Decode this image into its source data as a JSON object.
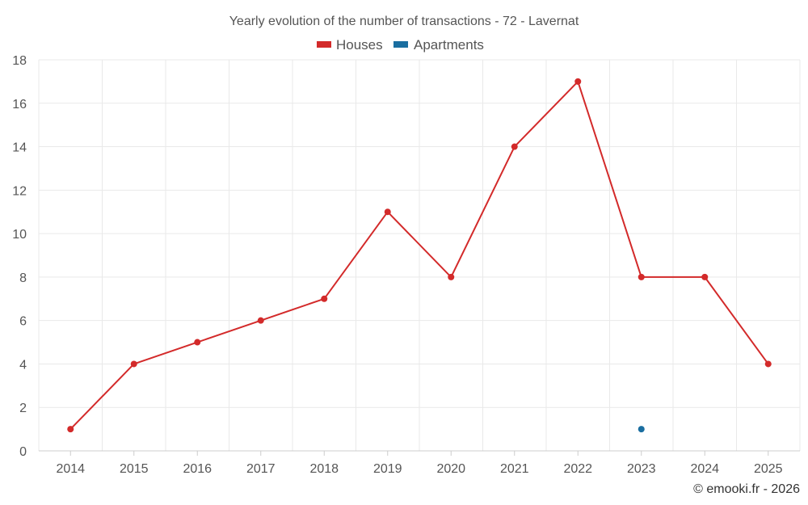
{
  "chart_data": {
    "type": "line",
    "title": "Yearly evolution of the number of transactions - 72 - Lavernat",
    "categories": [
      "2014",
      "2015",
      "2016",
      "2017",
      "2018",
      "2019",
      "2020",
      "2021",
      "2022",
      "2023",
      "2024",
      "2025"
    ],
    "ylim": [
      0,
      18
    ],
    "yticks": [
      0,
      2,
      4,
      6,
      8,
      10,
      12,
      14,
      16,
      18
    ],
    "grid": true,
    "legend_position": "top-center",
    "series": [
      {
        "name": "Houses",
        "color": "#d32a2a",
        "values": [
          1,
          4,
          5,
          6,
          7,
          11,
          8,
          14,
          17,
          8,
          8,
          4
        ]
      },
      {
        "name": "Apartments",
        "color": "#1a6ea0",
        "values": [
          null,
          null,
          null,
          null,
          null,
          null,
          null,
          null,
          null,
          1,
          null,
          null
        ]
      }
    ],
    "credit": "© emooki.fr - 2026"
  }
}
